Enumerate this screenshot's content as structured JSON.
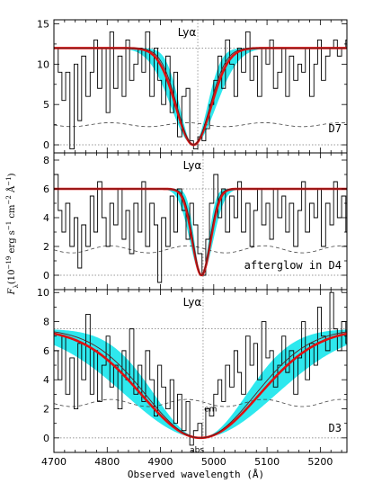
{
  "chart_data": {
    "type": "line",
    "xlabel": "Observed wavelength (Å)",
    "ylabel": "F_λ(10^-19 erg s^-1 cm^-2 Å^-1)",
    "x_ticks": [
      4700,
      4800,
      4900,
      5000,
      5100,
      5200
    ],
    "xlim": [
      4700,
      5250
    ],
    "panels": [
      {
        "label": "D7",
        "line": "Lyα",
        "ylim": [
          -1,
          15.5
        ],
        "y_ticks": [
          0,
          5,
          10,
          15
        ],
        "continuum": 12,
        "marker_x": 4970,
        "model_center": 4962,
        "model_width": 33,
        "noise_level": 2.5,
        "spectrum_x": [
          4700,
          4708,
          4715,
          4722,
          4730,
          4738,
          4745,
          4752,
          4760,
          4768,
          4775,
          4782,
          4790,
          4798,
          4805,
          4812,
          4820,
          4828,
          4835,
          4842,
          4850,
          4858,
          4865,
          4872,
          4880,
          4888,
          4895,
          4902,
          4910,
          4918,
          4925,
          4932,
          4940,
          4948,
          4955,
          4962,
          4970,
          4978,
          4985,
          4992,
          5000,
          5008,
          5015,
          5022,
          5030,
          5038,
          5045,
          5052,
          5060,
          5068,
          5075,
          5082,
          5090,
          5098,
          5105,
          5112,
          5120,
          5128,
          5135,
          5142,
          5150,
          5158,
          5165,
          5172,
          5180,
          5188,
          5195,
          5202,
          5210,
          5218,
          5225,
          5232,
          5240,
          5248
        ],
        "spectrum_y": [
          12,
          9,
          5.5,
          9,
          -0.5,
          10,
          3,
          11,
          6,
          9,
          13,
          7,
          12,
          4,
          14,
          7,
          11,
          6,
          13,
          8,
          10,
          12,
          9,
          14,
          6,
          12,
          8,
          5,
          11,
          4,
          9,
          1,
          6,
          7,
          0.5,
          -0.5,
          1,
          0.5,
          2,
          5,
          8,
          11,
          7,
          13,
          10,
          6,
          12,
          9,
          14,
          8,
          11,
          6,
          12,
          10,
          13,
          7,
          9,
          12,
          6,
          11,
          8,
          10,
          9,
          12,
          6,
          10,
          13,
          8,
          11,
          12,
          13,
          11,
          12,
          13
        ]
      },
      {
        "label": "afterglow in D4",
        "line": "Lyα",
        "ylim": [
          -1,
          8.5
        ],
        "y_ticks": [
          0,
          2,
          4,
          6,
          8
        ],
        "continuum": 6,
        "marker_x": 4980,
        "model_center": 4977,
        "model_width": 17,
        "noise_level": 1.8,
        "spectrum_x": [
          4700,
          4708,
          4715,
          4722,
          4730,
          4738,
          4745,
          4752,
          4760,
          4768,
          4775,
          4782,
          4790,
          4798,
          4805,
          4812,
          4820,
          4828,
          4835,
          4842,
          4850,
          4858,
          4865,
          4872,
          4880,
          4888,
          4895,
          4902,
          4910,
          4918,
          4925,
          4932,
          4940,
          4948,
          4955,
          4962,
          4970,
          4978,
          4985,
          4992,
          5000,
          5008,
          5015,
          5022,
          5030,
          5038,
          5045,
          5052,
          5060,
          5068,
          5075,
          5082,
          5090,
          5098,
          5105,
          5112,
          5120,
          5128,
          5135,
          5142,
          5150,
          5158,
          5165,
          5172,
          5180,
          5188,
          5195,
          5202,
          5210,
          5218,
          5225,
          5232,
          5240,
          5248
        ],
        "spectrum_y": [
          7,
          4.5,
          3,
          5,
          2,
          4,
          0.5,
          3.5,
          2,
          5.5,
          3,
          6.5,
          4,
          2,
          5,
          3.5,
          6,
          2.5,
          4.5,
          1.5,
          5,
          3,
          6.5,
          2,
          5,
          3.5,
          -0.5,
          4,
          2,
          5.5,
          3,
          6,
          4.5,
          2.5,
          5,
          3.5,
          1.5,
          0,
          2.5,
          5,
          7,
          4,
          6,
          3,
          5.5,
          4,
          6.5,
          3,
          5,
          2,
          4.5,
          6,
          3.5,
          5,
          2.5,
          6,
          4,
          5.5,
          3,
          5,
          2,
          4.5,
          6.5,
          3,
          5,
          4,
          6,
          2,
          5,
          3.5,
          6.5,
          4,
          5.5,
          3
        ]
      },
      {
        "label": "D3",
        "line": "Lyα",
        "ylim": [
          -1,
          10.2
        ],
        "y_ticks": [
          0,
          2,
          4,
          6,
          8,
          10
        ],
        "continuum": 7.5,
        "marker_x": 4980,
        "model_center": 4975,
        "model_width": 110,
        "noise_level": 2.4,
        "annotations": [
          "em",
          "abs"
        ],
        "spectrum_x": [
          4700,
          4708,
          4715,
          4722,
          4730,
          4738,
          4745,
          4752,
          4760,
          4768,
          4775,
          4782,
          4790,
          4798,
          4805,
          4812,
          4820,
          4828,
          4835,
          4842,
          4850,
          4858,
          4865,
          4872,
          4880,
          4888,
          4895,
          4902,
          4910,
          4918,
          4925,
          4932,
          4940,
          4948,
          4955,
          4962,
          4970,
          4978,
          4985,
          4992,
          5000,
          5008,
          5015,
          5022,
          5030,
          5038,
          5045,
          5052,
          5060,
          5068,
          5075,
          5082,
          5090,
          5098,
          5105,
          5112,
          5120,
          5128,
          5135,
          5142,
          5150,
          5158,
          5165,
          5172,
          5180,
          5188,
          5195,
          5202,
          5210,
          5218,
          5225,
          5232,
          5240,
          5248
        ],
        "spectrum_y": [
          6,
          4,
          7,
          3,
          5.5,
          2,
          6.5,
          4,
          8.5,
          3,
          6,
          2.5,
          5,
          7,
          3.5,
          5,
          2,
          6,
          4,
          7.5,
          3,
          5,
          2.5,
          6,
          4,
          1.5,
          5,
          3.5,
          2,
          4,
          1,
          3,
          0.5,
          2.5,
          -0.5,
          0.5,
          1,
          0,
          2,
          1.5,
          3,
          4,
          2.5,
          5,
          3.5,
          6,
          4.5,
          3,
          7,
          5,
          6.5,
          4,
          8,
          5.5,
          6,
          3.5,
          5,
          7,
          4.5,
          6,
          3,
          5.5,
          8,
          4,
          6.5,
          5,
          9,
          7,
          6,
          10,
          7.5,
          6,
          8,
          6.5
        ]
      }
    ]
  }
}
